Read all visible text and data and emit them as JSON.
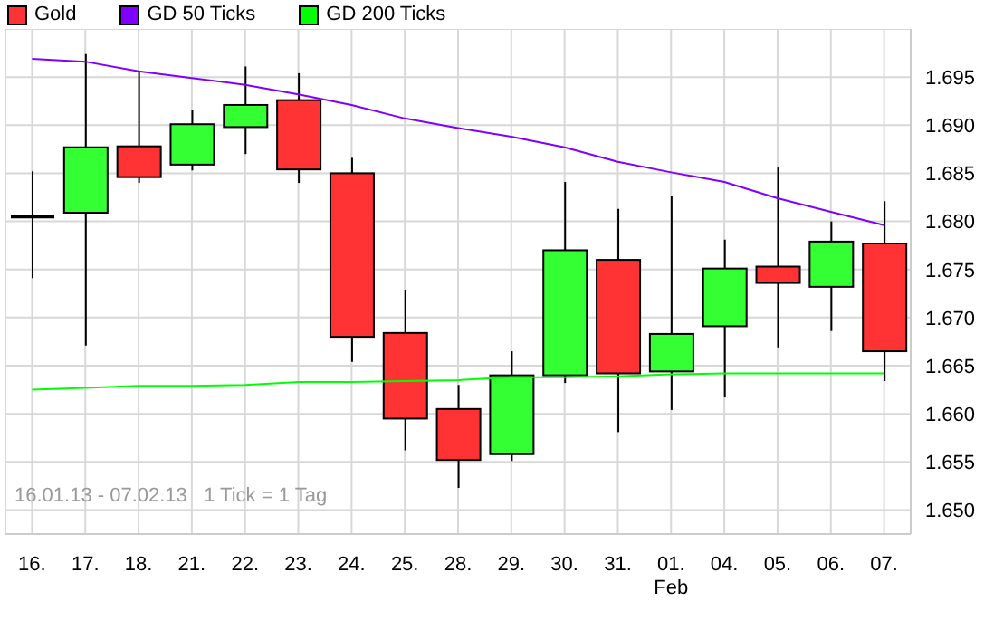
{
  "chart_data": {
    "type": "candlestick",
    "categories": [
      "16.",
      "17.",
      "18.",
      "21.",
      "22.",
      "23.",
      "24.",
      "25.",
      "28.",
      "29.",
      "30.",
      "31.",
      "01.\nFeb",
      "04.",
      "05.",
      "06.",
      "07."
    ],
    "series": [
      {
        "name": "Gold",
        "color": "#ff3333",
        "colors": [
          "#000000",
          "#33ff33",
          "#ff3333",
          "#33ff33",
          "#33ff33",
          "#ff3333",
          "#ff3333",
          "#ff3333",
          "#ff3333",
          "#33ff33",
          "#33ff33",
          "#ff3333",
          "#33ff33",
          "#33ff33",
          "#ff3333",
          "#33ff33",
          "#ff3333"
        ],
        "ohlc": [
          [
            1.6805,
            1.6852,
            1.6741,
            1.6805
          ],
          [
            1.6809,
            1.6974,
            1.6671,
            1.6877
          ],
          [
            1.6878,
            1.6956,
            1.684,
            1.6846
          ],
          [
            1.6859,
            1.6916,
            1.6853,
            1.6901
          ],
          [
            1.6898,
            1.6961,
            1.687,
            1.6921
          ],
          [
            1.6926,
            1.6954,
            1.684,
            1.6854
          ],
          [
            1.685,
            1.6866,
            1.6654,
            1.668
          ],
          [
            1.6684,
            1.6729,
            1.6562,
            1.6595
          ],
          [
            1.6605,
            1.663,
            1.6523,
            1.6552
          ],
          [
            1.6558,
            1.6665,
            1.6551,
            1.664
          ],
          [
            1.664,
            1.6841,
            1.6632,
            1.677
          ],
          [
            1.676,
            1.6813,
            1.6581,
            1.6642
          ],
          [
            1.6644,
            1.6826,
            1.6604,
            1.6683
          ],
          [
            1.6691,
            1.6781,
            1.6617,
            1.6751
          ],
          [
            1.6753,
            1.6856,
            1.6669,
            1.6736
          ],
          [
            1.6732,
            1.68,
            1.6686,
            1.6779
          ],
          [
            1.6777,
            1.6821,
            1.6634,
            1.6665
          ]
        ]
      },
      {
        "name": "GD 50 Ticks",
        "type": "line",
        "color": "#7f00ff",
        "values": [
          1.6969,
          1.6966,
          1.6956,
          1.6949,
          1.6942,
          1.6932,
          1.6921,
          1.6907,
          1.6897,
          1.6888,
          1.6877,
          1.6862,
          1.6851,
          1.6841,
          1.6824,
          1.681,
          1.6796
        ]
      },
      {
        "name": "GD 200 Ticks",
        "type": "line",
        "color": "#00ff00",
        "values": [
          1.6625,
          1.6627,
          1.6629,
          1.6629,
          1.663,
          1.6633,
          1.6633,
          1.6634,
          1.6635,
          1.6638,
          1.6638,
          1.6639,
          1.6641,
          1.6642,
          1.6642,
          1.6642,
          1.6642
        ]
      }
    ],
    "ylim": [
      1.6475,
      1.7
    ],
    "yticks": [
      {
        "value": 1.65,
        "label": "1.650"
      },
      {
        "value": 1.655,
        "label": "1.655"
      },
      {
        "value": 1.66,
        "label": "1.660"
      },
      {
        "value": 1.665,
        "label": "1.665"
      },
      {
        "value": 1.67,
        "label": "1.670"
      },
      {
        "value": 1.675,
        "label": "1.675"
      },
      {
        "value": 1.68,
        "label": "1.680"
      },
      {
        "value": 1.685,
        "label": "1.685"
      },
      {
        "value": 1.69,
        "label": "1.690"
      },
      {
        "value": 1.695,
        "label": "1.695"
      }
    ],
    "annotations": [
      "16.01.13 - 07.02.13   1 Tick = 1 Tag"
    ],
    "grid": true,
    "legend": "top left",
    "marker": "none",
    "line_style": "solid"
  }
}
